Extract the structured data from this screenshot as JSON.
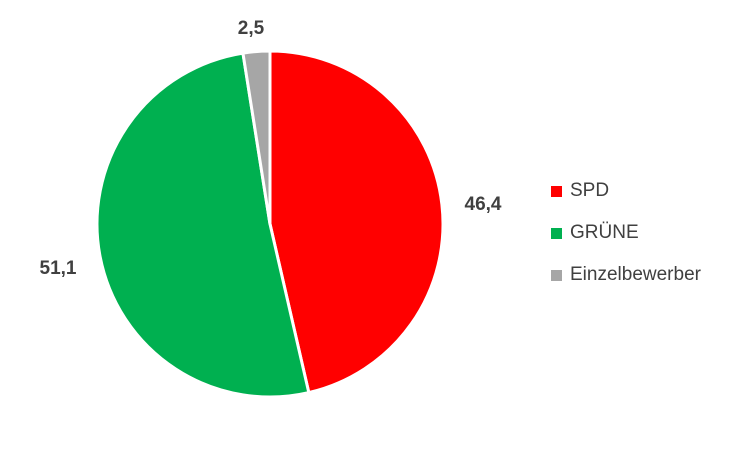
{
  "chart_data": {
    "type": "pie",
    "categories": [
      "SPD",
      "GRÜNE",
      "Einzelbewerber"
    ],
    "values": [
      46.4,
      51.1,
      2.5
    ],
    "value_labels": [
      "46,4",
      "51,1",
      "2,5"
    ],
    "colors": [
      "#ff0000",
      "#00b050",
      "#a6a6a6"
    ],
    "start_angle": "12 o'clock",
    "direction": "clockwise",
    "legend_position": "right"
  }
}
